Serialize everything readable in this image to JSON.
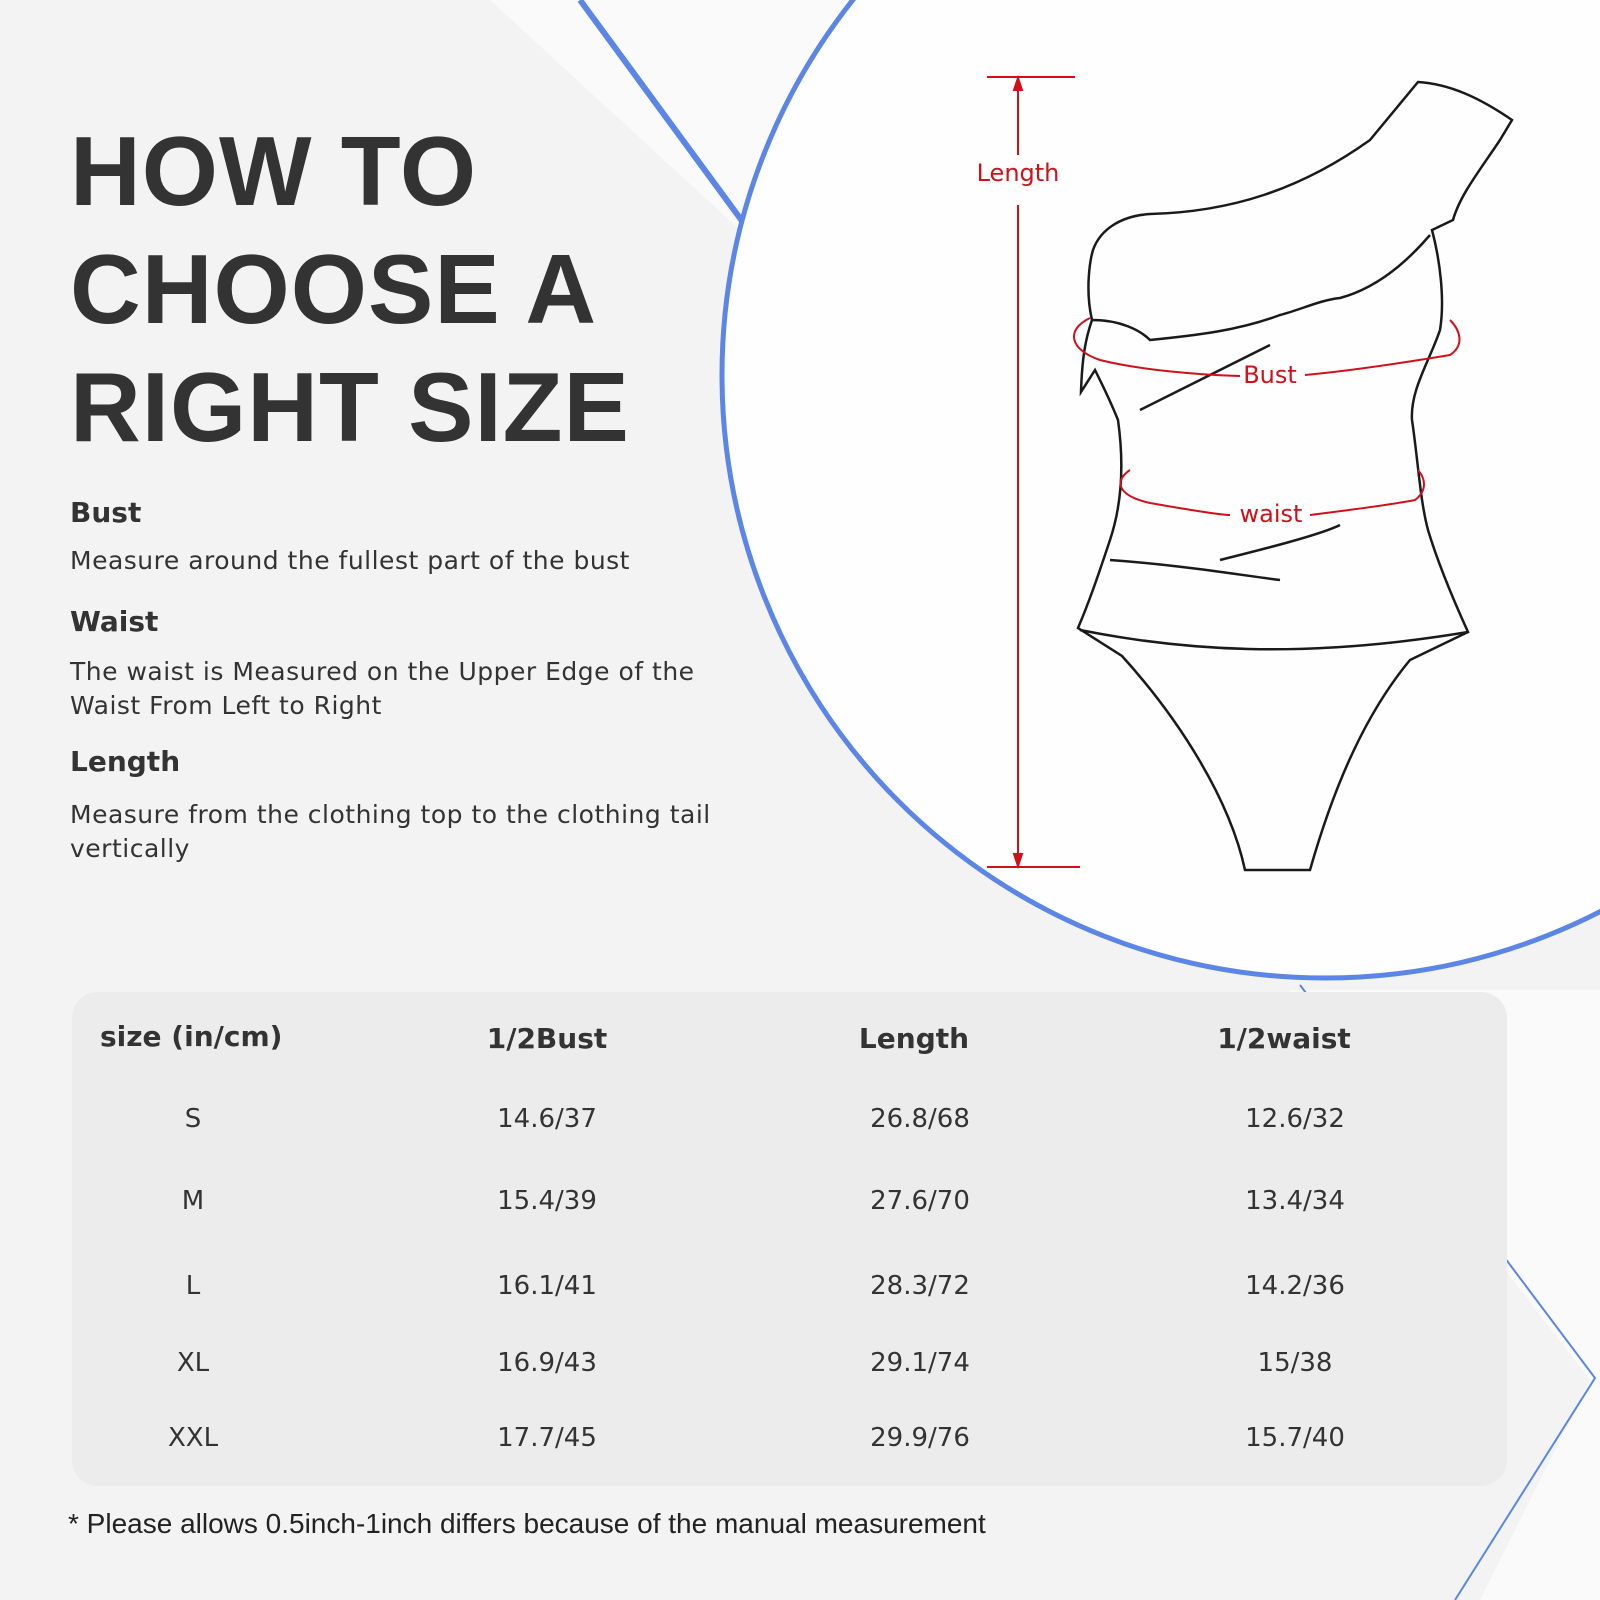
{
  "title_lines": [
    "HOW TO",
    "CHOOSE A",
    "RIGHT SIZE"
  ],
  "sections": [
    {
      "heading": "Bust",
      "text": "Measure around the fullest part of the bust"
    },
    {
      "heading": "Waist",
      "text": "The waist is Measured on the Upper Edge of the Waist From Left to Right"
    },
    {
      "heading": "Length",
      "text": "Measure from the clothing top to the clothing tail vertically"
    }
  ],
  "diagram": {
    "length_label": "Length",
    "bust_label": "Bust",
    "waist_label": "waist"
  },
  "table": {
    "headers": [
      "size (in/cm)",
      "1/2Bust",
      "Length",
      "1/2waist"
    ],
    "rows": [
      [
        "S",
        "14.6/37",
        "26.8/68",
        "12.6/32"
      ],
      [
        "M",
        "15.4/39",
        "27.6/70",
        "13.4/34"
      ],
      [
        "L",
        "16.1/41",
        "28.3/72",
        "14.2/36"
      ],
      [
        "XL",
        "16.9/43",
        "29.1/74",
        "15/38"
      ],
      [
        "XXL",
        "17.7/45",
        "29.9/76",
        "15.7/40"
      ]
    ]
  },
  "note": "* Please allows 0.5inch-1inch differs because of the manual measurement",
  "colors": {
    "accent_blue": "#5b86e5",
    "measure_red": "#d0101a",
    "text": "#333333",
    "table_bg": "#ececec"
  }
}
